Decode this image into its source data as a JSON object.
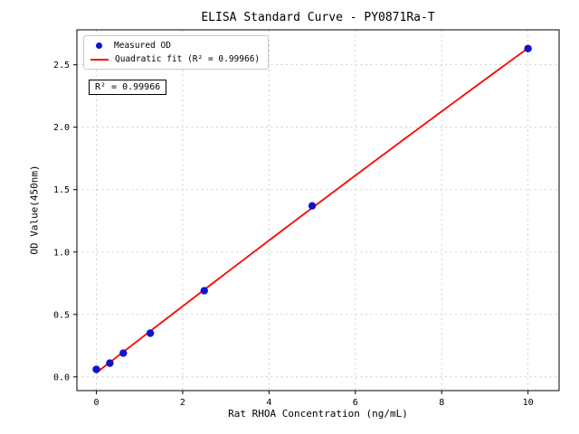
{
  "chart_data": {
    "type": "scatter",
    "title": "ELISA Standard Curve - PY0871Ra-T",
    "xlabel": "Rat RHOA Concentration (ng/mL)",
    "ylabel": "OD Value(450nm)",
    "xlim": [
      -0.45,
      10.72
    ],
    "ylim": [
      -0.11,
      2.78
    ],
    "xticks": [
      0,
      2,
      4,
      6,
      8,
      10
    ],
    "xtick_labels": [
      "0",
      "2",
      "4",
      "6",
      "8",
      "10"
    ],
    "yticks": [
      0,
      0.5,
      1,
      1.5,
      2,
      2.5
    ],
    "ytick_labels": [
      "0.0",
      "0.5",
      "1.0",
      "1.5",
      "2.0",
      "2.5"
    ],
    "grid": true,
    "legend_position": "upper left",
    "series": [
      {
        "name": "Measured OD",
        "type": "scatter",
        "color": "#0f14cc",
        "x": [
          0,
          0.313,
          0.625,
          1.25,
          2.5,
          5,
          10
        ],
        "y": [
          0.06,
          0.11,
          0.19,
          0.35,
          0.69,
          1.37,
          2.63
        ]
      },
      {
        "name": "Quadratic fit (R² = 0.99966)",
        "type": "line",
        "fit": "quadratic",
        "color": "#ff0000",
        "x_range": [
          0,
          10
        ]
      }
    ],
    "annotation": "R² = 0.99966"
  },
  "colors": {
    "marker": "#0f14cc",
    "fit_line": "#ff0000",
    "grid": "#c3c3c3",
    "axes": "#000000",
    "background": "#ffffff"
  }
}
